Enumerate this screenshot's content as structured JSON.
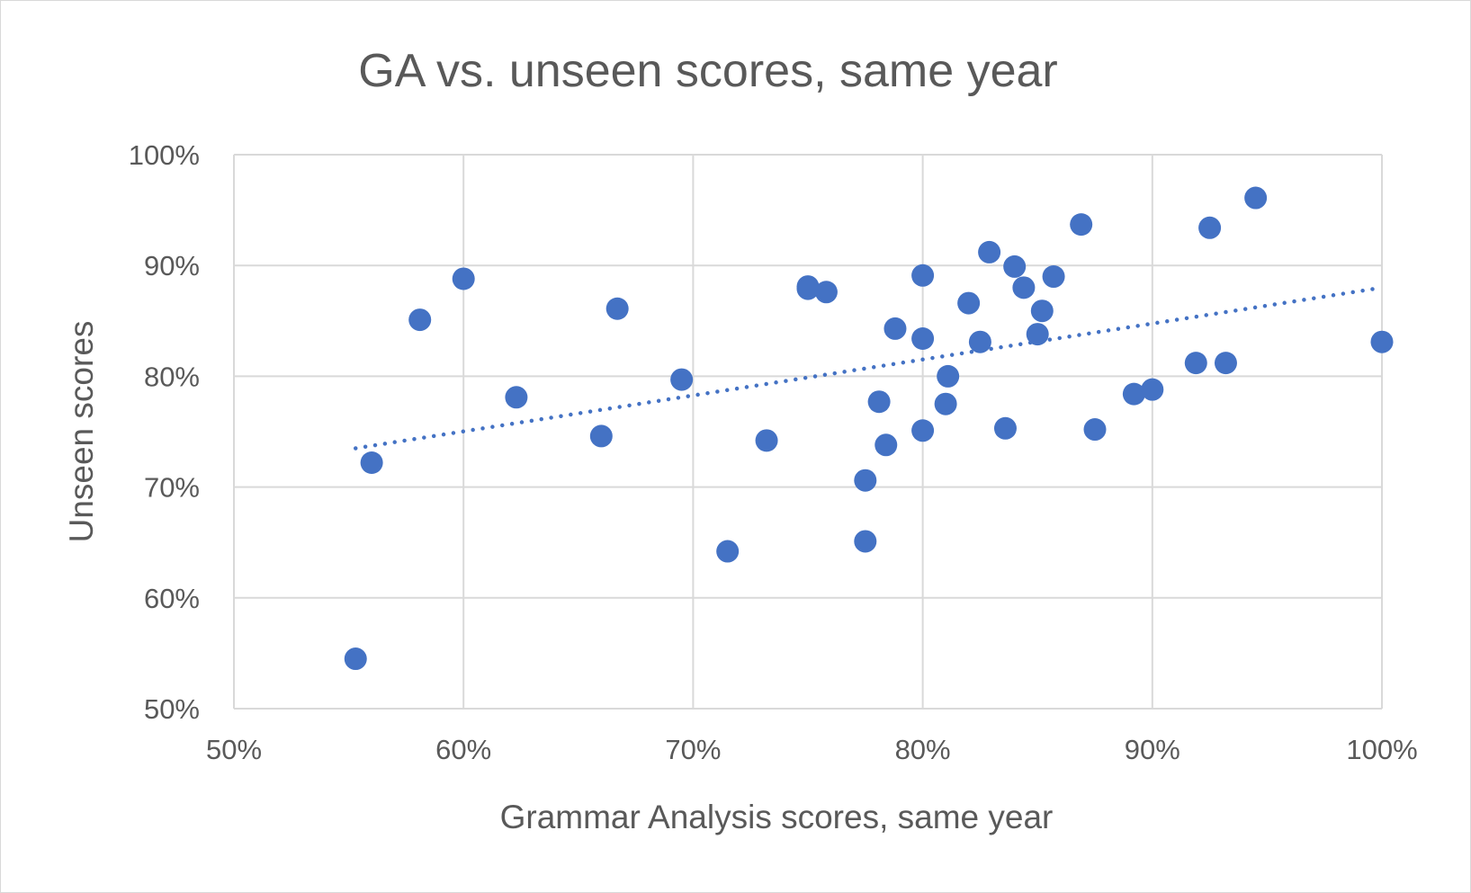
{
  "chart_data": {
    "type": "scatter",
    "title": "GA vs. unseen scores, same year",
    "xlabel": "Grammar Analysis scores, same year",
    "ylabel": "Unseen scores",
    "xlim": [
      0.5,
      1.0
    ],
    "ylim": [
      0.5,
      1.0
    ],
    "x_ticks": [
      "50%",
      "60%",
      "70%",
      "80%",
      "90%",
      "100%"
    ],
    "y_ticks": [
      "50%",
      "60%",
      "70%",
      "80%",
      "90%",
      "100%"
    ],
    "grid": true,
    "legend": "none",
    "series": [
      {
        "color": "#4472c4",
        "points": [
          [
            0.553,
            0.545
          ],
          [
            0.56,
            0.722
          ],
          [
            0.581,
            0.851
          ],
          [
            0.6,
            0.888
          ],
          [
            0.623,
            0.781
          ],
          [
            0.66,
            0.746
          ],
          [
            0.667,
            0.861
          ],
          [
            0.695,
            0.797
          ],
          [
            0.715,
            0.642
          ],
          [
            0.732,
            0.742
          ],
          [
            0.75,
            0.881
          ],
          [
            0.75,
            0.879
          ],
          [
            0.758,
            0.876
          ],
          [
            0.775,
            0.706
          ],
          [
            0.775,
            0.651
          ],
          [
            0.781,
            0.777
          ],
          [
            0.784,
            0.738
          ],
          [
            0.788,
            0.843
          ],
          [
            0.8,
            0.891
          ],
          [
            0.8,
            0.834
          ],
          [
            0.8,
            0.751
          ],
          [
            0.81,
            0.775
          ],
          [
            0.811,
            0.8
          ],
          [
            0.82,
            0.866
          ],
          [
            0.825,
            0.831
          ],
          [
            0.829,
            0.912
          ],
          [
            0.836,
            0.753
          ],
          [
            0.84,
            0.899
          ],
          [
            0.844,
            0.88
          ],
          [
            0.85,
            0.838
          ],
          [
            0.852,
            0.859
          ],
          [
            0.857,
            0.89
          ],
          [
            0.869,
            0.937
          ],
          [
            0.875,
            0.752
          ],
          [
            0.892,
            0.784
          ],
          [
            0.9,
            0.788
          ],
          [
            0.919,
            0.812
          ],
          [
            0.925,
            0.934
          ],
          [
            0.932,
            0.812
          ],
          [
            0.945,
            0.961
          ],
          [
            1.0,
            0.831
          ]
        ]
      }
    ],
    "trendline": {
      "type": "linear",
      "style": "dotted",
      "color": "#4472c4",
      "x": [
        0.553,
        1.0
      ],
      "y": [
        0.735,
        0.88
      ]
    }
  }
}
